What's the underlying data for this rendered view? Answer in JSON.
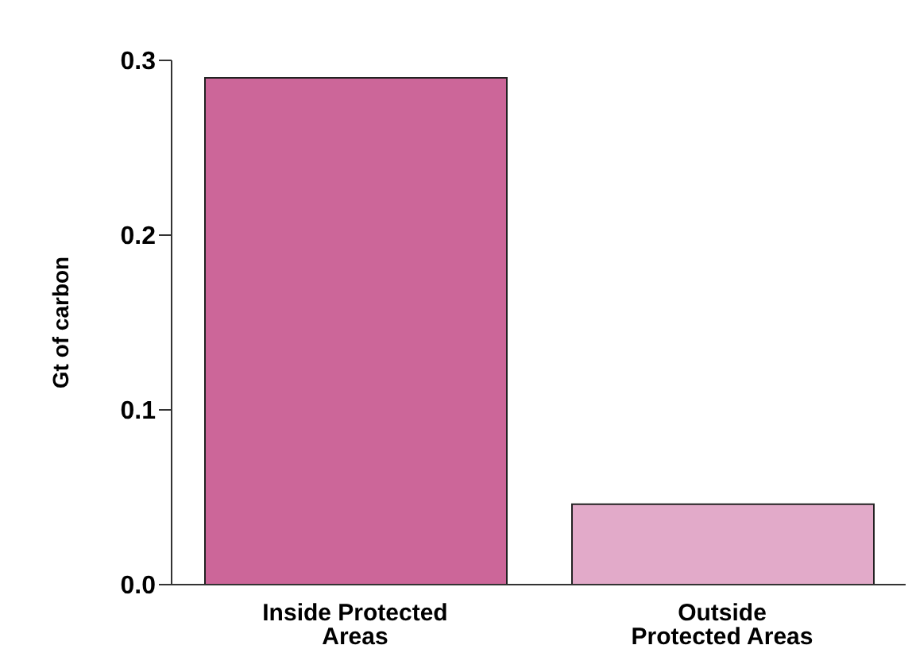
{
  "chart_data": {
    "type": "bar",
    "ylabel": "Gt of carbon",
    "categories": [
      "Inside Protected Areas",
      "Outside Protected Areas"
    ],
    "values": [
      0.29,
      0.046
    ],
    "colors": [
      "#cc6699",
      "#e2aac9"
    ],
    "ylim": [
      0,
      0.3
    ],
    "yticks": [
      {
        "value": 0,
        "label": "0.0"
      },
      {
        "value": 0.1,
        "label": "0.1"
      },
      {
        "value": 0.2,
        "label": "0.2"
      },
      {
        "value": 0.3,
        "label": "0.3"
      }
    ]
  }
}
